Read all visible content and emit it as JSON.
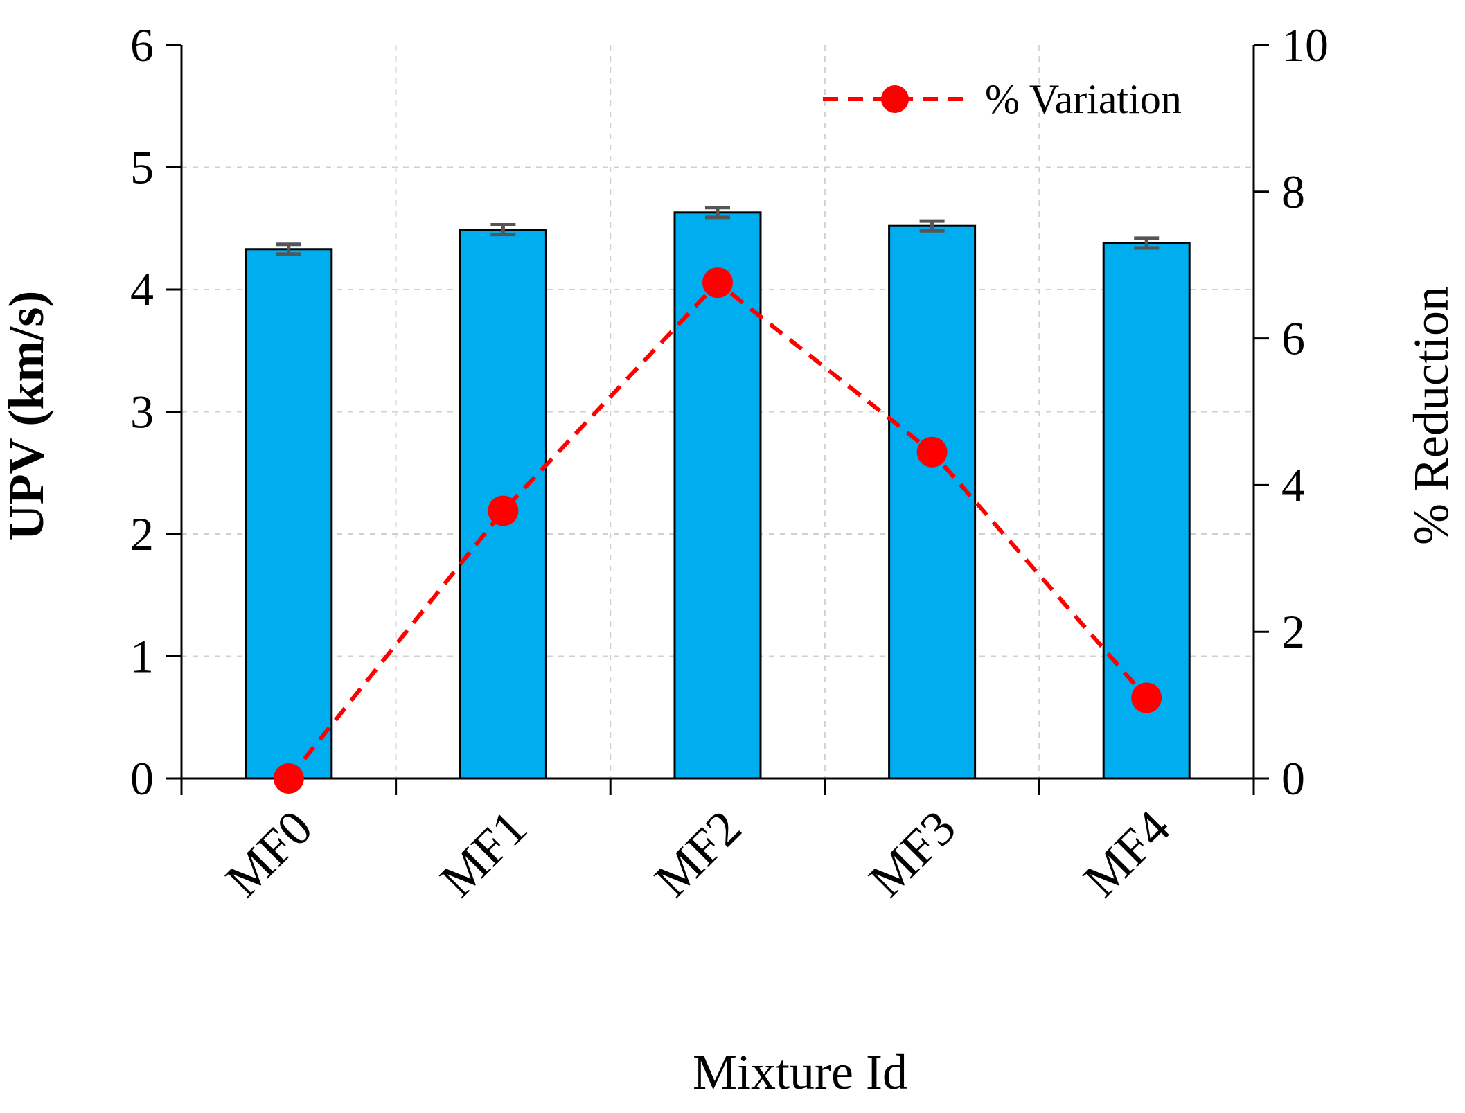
{
  "chart_data": {
    "type": "bar",
    "title": "",
    "categories": [
      "MF0",
      "MF1",
      "MF2",
      "MF3",
      "MF4"
    ],
    "xlabel": "Mixture Id",
    "ylabel": "UPV (km/s)",
    "y2label": "% Reduction",
    "ylim": [
      0,
      6
    ],
    "y2lim": [
      0,
      10
    ],
    "yticks": [
      0,
      1,
      2,
      3,
      4,
      5,
      6
    ],
    "y2ticks": [
      0,
      2,
      4,
      6,
      8,
      10
    ],
    "grid": true,
    "legend_position": "top-right",
    "series": [
      {
        "name": "UPV",
        "kind": "bar",
        "axis": "left",
        "values": [
          4.33,
          4.49,
          4.63,
          4.52,
          4.38
        ],
        "errors": [
          0.04,
          0.04,
          0.04,
          0.04,
          0.04
        ],
        "color": "#00AEEF"
      },
      {
        "name": "% Variation",
        "kind": "line",
        "axis": "right",
        "values": [
          0.0,
          3.65,
          6.76,
          4.45,
          1.1
        ],
        "color": "#FF0000",
        "style": "dashed",
        "marker": "circle"
      }
    ]
  },
  "colors": {
    "bar_fill": "#00AEEF",
    "line": "#FF0000",
    "error_bar": "#555555",
    "grid": "#D0D0D0"
  }
}
